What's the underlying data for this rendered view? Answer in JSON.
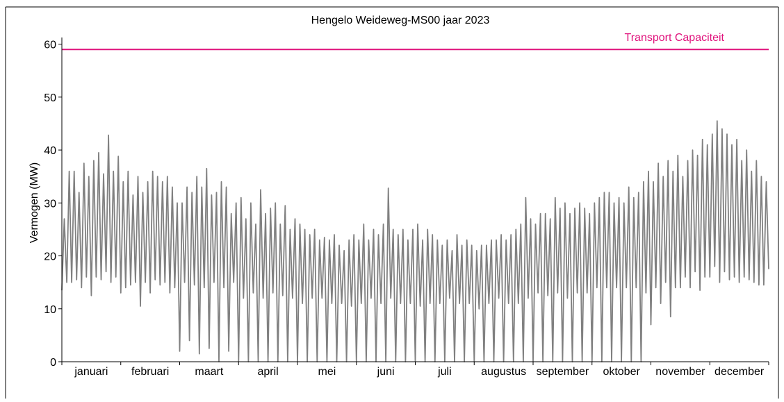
{
  "chart_data": {
    "type": "line",
    "title": "Hengelo Weideweg-MS00 jaar 2023",
    "xlabel": "",
    "ylabel": "Vermogen (MW)",
    "ylim": [
      0,
      61
    ],
    "yticks": [
      0,
      10,
      20,
      30,
      40,
      50,
      60
    ],
    "categories": [
      "januari",
      "februari",
      "maart",
      "april",
      "mei",
      "juni",
      "juli",
      "augustus",
      "september",
      "oktober",
      "november",
      "december"
    ],
    "grid": false,
    "series": [
      {
        "name": "",
        "color": "#808080",
        "points_per_month": 12,
        "lows": [
          13.5,
          15,
          15,
          15.5,
          14,
          16,
          12.5,
          16,
          15.5,
          17,
          15,
          16,
          13,
          14,
          14.5,
          15,
          10.5,
          15,
          13,
          15.5,
          14.5,
          15,
          13,
          14,
          2,
          15,
          4,
          14.5,
          1.5,
          14,
          2.5,
          15,
          0,
          14,
          2,
          15,
          0,
          12,
          0,
          13,
          0,
          12,
          0,
          13,
          0,
          12.5,
          0,
          12,
          0,
          11,
          0,
          12,
          0,
          12,
          0,
          11,
          0,
          11,
          0,
          10.5,
          0,
          11,
          0,
          12,
          0,
          11,
          0,
          12,
          0,
          11,
          0,
          11,
          0,
          10.5,
          0,
          11,
          0,
          11,
          0,
          12,
          0,
          11,
          0,
          11,
          0,
          10,
          0,
          11,
          0,
          12,
          0,
          11,
          0,
          11,
          0,
          12,
          0,
          13,
          0,
          12.5,
          0,
          13,
          0,
          12,
          0,
          13,
          0,
          13,
          0,
          14,
          0,
          14,
          0,
          14,
          0,
          14,
          0,
          14,
          0,
          13,
          7,
          14,
          11,
          15,
          8.5,
          14,
          14,
          16,
          14,
          17,
          13.5,
          16,
          16,
          18,
          15,
          17,
          15.5,
          16,
          15,
          16,
          15.5,
          15,
          14.5,
          14.5
        ],
        "highs": [
          27,
          36,
          36,
          32,
          37.5,
          35,
          38,
          39.5,
          35.5,
          42.8,
          36,
          38.8,
          34,
          36,
          31.5,
          35,
          32,
          34,
          36,
          35,
          34,
          35,
          33,
          30,
          30,
          33,
          32,
          35,
          33,
          36.5,
          31.5,
          32,
          34,
          33,
          28,
          30,
          31,
          27,
          30,
          26,
          32.5,
          28,
          29,
          30,
          26,
          29.5,
          25,
          27,
          26,
          25,
          24,
          25,
          23,
          23.5,
          23,
          24,
          22,
          21,
          23,
          24,
          23,
          26,
          23,
          25,
          24,
          26,
          32.8,
          25,
          24,
          25,
          23,
          25,
          26,
          23,
          25,
          24,
          23,
          22,
          23,
          21,
          24,
          22,
          23,
          22,
          21,
          22,
          22,
          23,
          23,
          24,
          23,
          24,
          25,
          26,
          31,
          27,
          26,
          28,
          28,
          27,
          31,
          29,
          30,
          28,
          29,
          30,
          29,
          28,
          30,
          31,
          32,
          32,
          30,
          31,
          30,
          33,
          31,
          32,
          34,
          36,
          34,
          37.5,
          35,
          38,
          36,
          39,
          35,
          38,
          40,
          39,
          42,
          41,
          43,
          45.5,
          44,
          43,
          41,
          42,
          38,
          40,
          36,
          38,
          35,
          34
        ],
        "end_value": 17.5
      }
    ],
    "reference_line": {
      "label": "Transport Capaciteit",
      "value": 59,
      "color": "#e0127c"
    }
  }
}
